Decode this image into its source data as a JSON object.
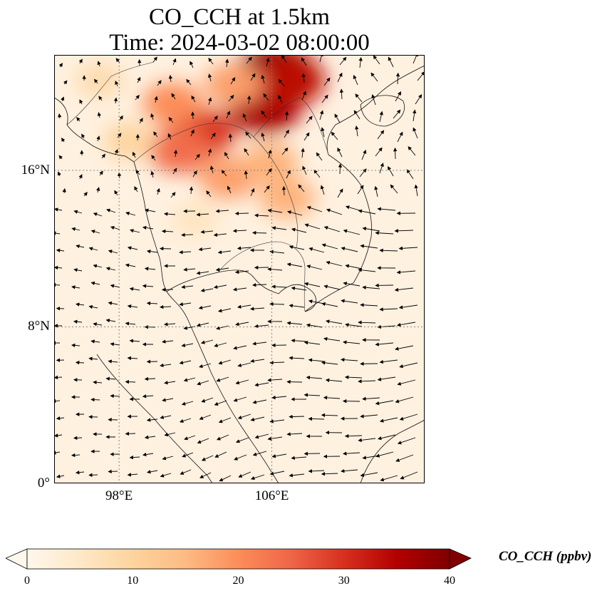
{
  "title_line1": "CO_CCH at 1.5km",
  "title_line2": "Time: 2024-03-02 08:00:00",
  "map": {
    "lon_range": [
      94.6,
      114.0
    ],
    "lat_range": [
      0,
      21.9
    ],
    "lat_ticks": [
      {
        "value": 0,
        "label": "0°"
      },
      {
        "value": 8,
        "label": "8°N"
      },
      {
        "value": 16,
        "label": "16°N"
      }
    ],
    "lon_ticks": [
      {
        "value": 98,
        "label": "98°E"
      },
      {
        "value": 106,
        "label": "106°E"
      }
    ],
    "gridlines": "dotted",
    "co_blobs": [
      {
        "lon": 106.2,
        "lat": 21.1,
        "value": 40
      },
      {
        "lon": 105.6,
        "lat": 19.2,
        "value": 36
      },
      {
        "lon": 106.9,
        "lat": 20.6,
        "value": 34
      },
      {
        "lon": 102.3,
        "lat": 17.9,
        "value": 30
      },
      {
        "lon": 101.2,
        "lat": 17.0,
        "value": 24
      },
      {
        "lon": 100.8,
        "lat": 19.4,
        "value": 20
      },
      {
        "lon": 103.7,
        "lat": 15.6,
        "value": 18
      },
      {
        "lon": 104.0,
        "lat": 20.4,
        "value": 18
      },
      {
        "lon": 105.9,
        "lat": 16.4,
        "value": 16
      },
      {
        "lon": 106.8,
        "lat": 14.6,
        "value": 16
      },
      {
        "lon": 98.5,
        "lat": 17.5,
        "value": 10
      },
      {
        "lon": 97.0,
        "lat": 20.6,
        "value": 8
      },
      {
        "lon": 102.0,
        "lat": 13.5,
        "value": 6
      }
    ]
  },
  "colorbar": {
    "label": "CO_CCH (ppbv)",
    "min": 0,
    "max": 40,
    "extend": "both",
    "ticks": [
      "0",
      "10",
      "20",
      "30",
      "40"
    ],
    "colormap": "OrRd",
    "colors": [
      "#fff7ec",
      "#fee8c8",
      "#fdd49e",
      "#fdbb84",
      "#fc8d59",
      "#ef6548",
      "#d7301f",
      "#b30000",
      "#7f0000"
    ]
  }
}
